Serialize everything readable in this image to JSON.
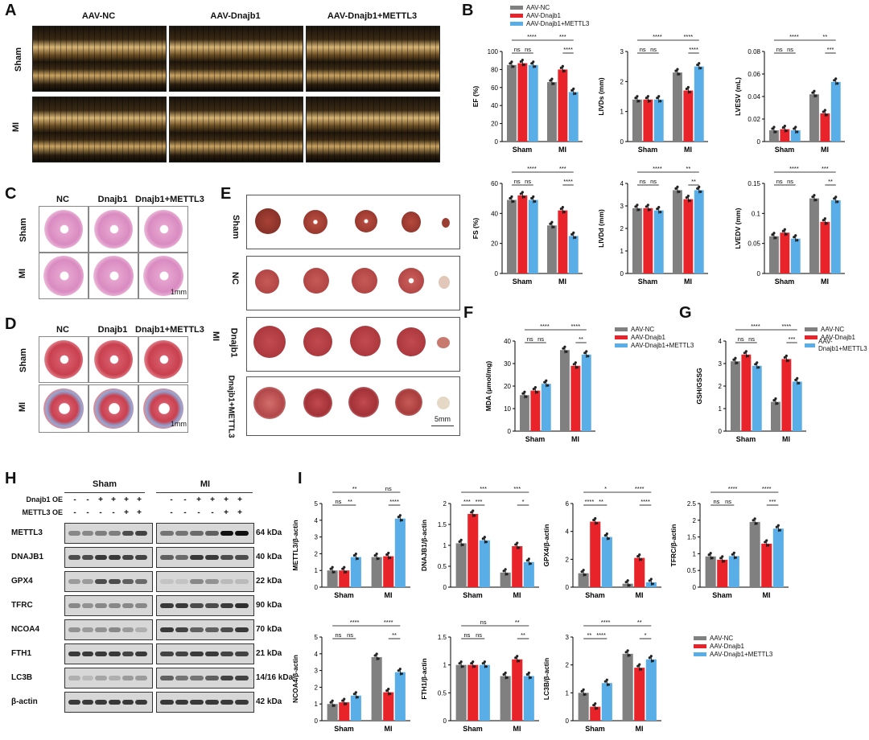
{
  "panels": {
    "A": "A",
    "B": "B",
    "C": "C",
    "D": "D",
    "E": "E",
    "F": "F",
    "G": "G",
    "H": "H",
    "I": "I"
  },
  "echo": {
    "cols": [
      "AAV-NC",
      "AAV-Dnajb1",
      "AAV-Dnajb1+METTL3"
    ],
    "rows": [
      "Sham",
      "MI"
    ]
  },
  "histo": {
    "cols": [
      "NC",
      "Dnajb1",
      "Dnajb1+METTL3"
    ],
    "rows": [
      "Sham",
      "MI"
    ],
    "scale": "1mm"
  },
  "ttc": {
    "rows": [
      "Sham",
      "NC",
      "Dnajb1",
      "Dnajb1+METTL3"
    ],
    "group": "MI",
    "scale": "5mm"
  },
  "wb": {
    "groups": [
      "Sham",
      "MI"
    ],
    "oe_rows": [
      {
        "label": "Dnajb1 OE",
        "signs": [
          "-",
          "-",
          "+",
          "+",
          "+",
          "+",
          "-",
          "-",
          "+",
          "+",
          "+",
          "+"
        ]
      },
      {
        "label": "METTL3 OE",
        "signs": [
          "-",
          "-",
          "-",
          "-",
          "+",
          "+",
          "-",
          "-",
          "-",
          "-",
          "+",
          "+"
        ]
      }
    ],
    "proteins": [
      {
        "name": "METTL3",
        "kda": "64 kDa"
      },
      {
        "name": "DNAJB1",
        "kda": "40 kDa"
      },
      {
        "name": "GPX4",
        "kda": "22 kDa"
      },
      {
        "name": "TFRC",
        "kda": "90 kDa"
      },
      {
        "name": "NCOA4",
        "kda": "70 kDa"
      },
      {
        "name": "FTH1",
        "kda": "21 kDa"
      },
      {
        "name": "LC3B",
        "kda": "14/16 kDa"
      },
      {
        "name": "β-actin",
        "kda": "42 kDa"
      }
    ]
  },
  "legend": [
    "AAV-NC",
    "AAV-Dnajb1",
    "AAV-Dnajb1+METTL3"
  ],
  "colors": {
    "nc": "#808080",
    "dnajb1": "#e8242a",
    "mettl3": "#5aaee8"
  },
  "chart_data": [
    {
      "id": "EF",
      "type": "bar",
      "categories": [
        "Sham",
        "MI"
      ],
      "ylabel": "EF (%)",
      "ylim": [
        0,
        100
      ],
      "yticks": [
        0,
        20,
        40,
        60,
        80,
        100
      ],
      "series": [
        {
          "name": "AAV-NC",
          "values": [
            85,
            66
          ]
        },
        {
          "name": "AAV-Dnajb1",
          "values": [
            87,
            80
          ]
        },
        {
          "name": "AAV-Dnajb1+METTL3",
          "values": [
            85,
            55
          ]
        }
      ],
      "sig": [
        "****",
        "***",
        "ns",
        "ns",
        "****"
      ]
    },
    {
      "id": "LIVDs",
      "type": "bar",
      "categories": [
        "Sham",
        "MI"
      ],
      "ylabel": "LIVDs (mm)",
      "ylim": [
        0,
        3
      ],
      "yticks": [
        0,
        1,
        2,
        3
      ],
      "series": [
        {
          "name": "AAV-NC",
          "values": [
            1.4,
            2.3
          ]
        },
        {
          "name": "AAV-Dnajb1",
          "values": [
            1.4,
            1.7
          ]
        },
        {
          "name": "AAV-Dnajb1+METTL3",
          "values": [
            1.4,
            2.5
          ]
        }
      ],
      "sig": [
        "****",
        "****",
        "ns",
        "ns",
        "****"
      ]
    },
    {
      "id": "LVESV",
      "type": "bar",
      "categories": [
        "Sham",
        "MI"
      ],
      "ylabel": "LVESV (mL)",
      "ylim": [
        0,
        0.08
      ],
      "yticks": [
        0,
        0.02,
        0.04,
        0.06,
        0.08
      ],
      "series": [
        {
          "name": "AAV-NC",
          "values": [
            0.01,
            0.042
          ]
        },
        {
          "name": "AAV-Dnajb1",
          "values": [
            0.011,
            0.025
          ]
        },
        {
          "name": "AAV-Dnajb1+METTL3",
          "values": [
            0.01,
            0.053
          ]
        }
      ],
      "sig": [
        "****",
        "**",
        "ns",
        "ns",
        "***"
      ]
    },
    {
      "id": "FS",
      "type": "bar",
      "categories": [
        "Sham",
        "MI"
      ],
      "ylabel": "FS (%)",
      "ylim": [
        0,
        60
      ],
      "yticks": [
        0,
        20,
        40,
        60
      ],
      "series": [
        {
          "name": "AAV-NC",
          "values": [
            49,
            32
          ]
        },
        {
          "name": "AAV-Dnajb1",
          "values": [
            52,
            42
          ]
        },
        {
          "name": "AAV-Dnajb1+METTL3",
          "values": [
            49,
            25
          ]
        }
      ],
      "sig": [
        "****",
        "***",
        "ns",
        "ns",
        "****"
      ]
    },
    {
      "id": "LIVDd",
      "type": "bar",
      "categories": [
        "Sham",
        "MI"
      ],
      "ylabel": "LIVDd (mm)",
      "ylim": [
        0,
        4
      ],
      "yticks": [
        0,
        1,
        2,
        3,
        4
      ],
      "series": [
        {
          "name": "AAV-NC",
          "values": [
            2.9,
            3.7
          ]
        },
        {
          "name": "AAV-Dnajb1",
          "values": [
            2.9,
            3.3
          ]
        },
        {
          "name": "AAV-Dnajb1+METTL3",
          "values": [
            2.8,
            3.7
          ]
        }
      ],
      "sig": [
        "****",
        "**",
        "ns",
        "ns",
        "**"
      ]
    },
    {
      "id": "LVEDV",
      "type": "bar",
      "categories": [
        "Sham",
        "MI"
      ],
      "ylabel": "LVEDV (mm)",
      "ylim": [
        0,
        0.15
      ],
      "yticks": [
        0,
        0.05,
        0.1,
        0.15
      ],
      "series": [
        {
          "name": "AAV-NC",
          "values": [
            0.062,
            0.125
          ]
        },
        {
          "name": "AAV-Dnajb1",
          "values": [
            0.068,
            0.086
          ]
        },
        {
          "name": "AAV-Dnajb1+METTL3",
          "values": [
            0.058,
            0.122
          ]
        }
      ],
      "sig": [
        "****",
        "***",
        "ns",
        "ns",
        "**"
      ]
    },
    {
      "id": "MDA",
      "type": "bar",
      "categories": [
        "Sham",
        "MI"
      ],
      "ylabel": "MDA (μmol/mg)",
      "ylim": [
        0,
        40
      ],
      "yticks": [
        0,
        10,
        20,
        30,
        40
      ],
      "series": [
        {
          "name": "AAV-NC",
          "values": [
            16,
            36
          ]
        },
        {
          "name": "AAV-Dnajb1",
          "values": [
            18,
            29
          ]
        },
        {
          "name": "AAV-Dnajb1+METTL3",
          "values": [
            21,
            34
          ]
        }
      ],
      "sig": [
        "****",
        "****",
        "ns",
        "ns",
        "**"
      ]
    },
    {
      "id": "GSH",
      "type": "bar",
      "categories": [
        "Sham",
        "MI"
      ],
      "ylabel": "GSH/GSSG",
      "ylim": [
        0,
        4
      ],
      "yticks": [
        0,
        1,
        2,
        3,
        4
      ],
      "series": [
        {
          "name": "AAV-NC",
          "values": [
            3.1,
            1.3
          ]
        },
        {
          "name": "AAV-Dnajb1",
          "values": [
            3.4,
            3.2
          ]
        },
        {
          "name": "AAV-Dnajb1+METTL3",
          "values": [
            2.9,
            2.2
          ]
        }
      ],
      "sig": [
        "****",
        "****",
        "ns",
        "ns",
        "***"
      ]
    },
    {
      "id": "METTL3q",
      "type": "bar",
      "categories": [
        "Sham",
        "MI"
      ],
      "ylabel": "METTL3/β-actin",
      "ylim": [
        0,
        5
      ],
      "yticks": [
        0,
        1,
        2,
        3,
        4,
        5
      ],
      "series": [
        {
          "name": "AAV-NC",
          "values": [
            1.0,
            1.8
          ]
        },
        {
          "name": "AAV-Dnajb1",
          "values": [
            1.0,
            1.85
          ]
        },
        {
          "name": "AAV-Dnajb1+METTL3",
          "values": [
            1.8,
            4.1
          ]
        }
      ],
      "sig": [
        "**",
        "ns",
        "ns",
        "**",
        "****"
      ]
    },
    {
      "id": "DNAJB1q",
      "type": "bar",
      "categories": [
        "Sham",
        "MI"
      ],
      "ylabel": "DNAJB1/β-actin",
      "ylim": [
        0,
        2
      ],
      "yticks": [
        0,
        0.5,
        1.0,
        1.5,
        2.0
      ],
      "series": [
        {
          "name": "AAV-NC",
          "values": [
            1.05,
            0.35
          ]
        },
        {
          "name": "AAV-Dnajb1",
          "values": [
            1.75,
            0.98
          ]
        },
        {
          "name": "AAV-Dnajb1+METTL3",
          "values": [
            1.12,
            0.6
          ]
        }
      ],
      "sig": [
        "***",
        "***",
        "***",
        "***",
        "*"
      ]
    },
    {
      "id": "GPX4q",
      "type": "bar",
      "categories": [
        "Sham",
        "MI"
      ],
      "ylabel": "GPX4/β-actin",
      "ylim": [
        0,
        6
      ],
      "yticks": [
        0,
        2,
        4,
        6
      ],
      "series": [
        {
          "name": "AAV-NC",
          "values": [
            1.0,
            0.25
          ]
        },
        {
          "name": "AAV-Dnajb1",
          "values": [
            4.7,
            2.1
          ]
        },
        {
          "name": "AAV-Dnajb1+METTL3",
          "values": [
            3.6,
            0.35
          ]
        }
      ],
      "sig": [
        "*",
        "****",
        "****",
        "**",
        "****"
      ]
    },
    {
      "id": "TFRCq",
      "type": "bar",
      "categories": [
        "Sham",
        "MI"
      ],
      "ylabel": "TFRC/β-actin",
      "ylim": [
        0,
        2.5
      ],
      "yticks": [
        0,
        0.5,
        1.0,
        1.5,
        2.0,
        2.5
      ],
      "series": [
        {
          "name": "AAV-NC",
          "values": [
            0.92,
            1.95
          ]
        },
        {
          "name": "AAV-Dnajb1",
          "values": [
            0.82,
            1.3
          ]
        },
        {
          "name": "AAV-Dnajb1+METTL3",
          "values": [
            0.93,
            1.75
          ]
        }
      ],
      "sig": [
        "****",
        "****",
        "ns",
        "ns",
        "***"
      ]
    },
    {
      "id": "NCOA4q",
      "type": "bar",
      "categories": [
        "Sham",
        "MI"
      ],
      "ylabel": "NCOA4/β-actin",
      "ylim": [
        0,
        5
      ],
      "yticks": [
        0,
        1,
        2,
        3,
        4,
        5
      ],
      "series": [
        {
          "name": "AAV-NC",
          "values": [
            1.0,
            3.8
          ]
        },
        {
          "name": "AAV-Dnajb1",
          "values": [
            1.1,
            1.7
          ]
        },
        {
          "name": "AAV-Dnajb1+METTL3",
          "values": [
            1.5,
            2.9
          ]
        }
      ],
      "sig": [
        "****",
        "****",
        "ns",
        "ns",
        "**"
      ]
    },
    {
      "id": "FTH1q",
      "type": "bar",
      "categories": [
        "Sham",
        "MI"
      ],
      "ylabel": "FTH1/β-actin",
      "ylim": [
        0,
        1.5
      ],
      "yticks": [
        0,
        0.5,
        1.0,
        1.5
      ],
      "series": [
        {
          "name": "AAV-NC",
          "values": [
            1.0,
            0.8
          ]
        },
        {
          "name": "AAV-Dnajb1",
          "values": [
            1.0,
            1.1
          ]
        },
        {
          "name": "AAV-Dnajb1+METTL3",
          "values": [
            1.0,
            0.8
          ]
        }
      ],
      "sig": [
        "ns",
        "**",
        "ns",
        "ns",
        "**"
      ]
    },
    {
      "id": "LC3Bq",
      "type": "bar",
      "categories": [
        "Sham",
        "MI"
      ],
      "ylabel": "LC3B/β-actin",
      "ylim": [
        0,
        3
      ],
      "yticks": [
        0,
        1,
        2,
        3
      ],
      "series": [
        {
          "name": "AAV-NC",
          "values": [
            1.0,
            2.4
          ]
        },
        {
          "name": "AAV-Dnajb1",
          "values": [
            0.5,
            1.9
          ]
        },
        {
          "name": "AAV-Dnajb1+METTL3",
          "values": [
            1.35,
            2.2
          ]
        }
      ],
      "sig": [
        "****",
        "**",
        "**",
        "****",
        "*"
      ]
    }
  ]
}
